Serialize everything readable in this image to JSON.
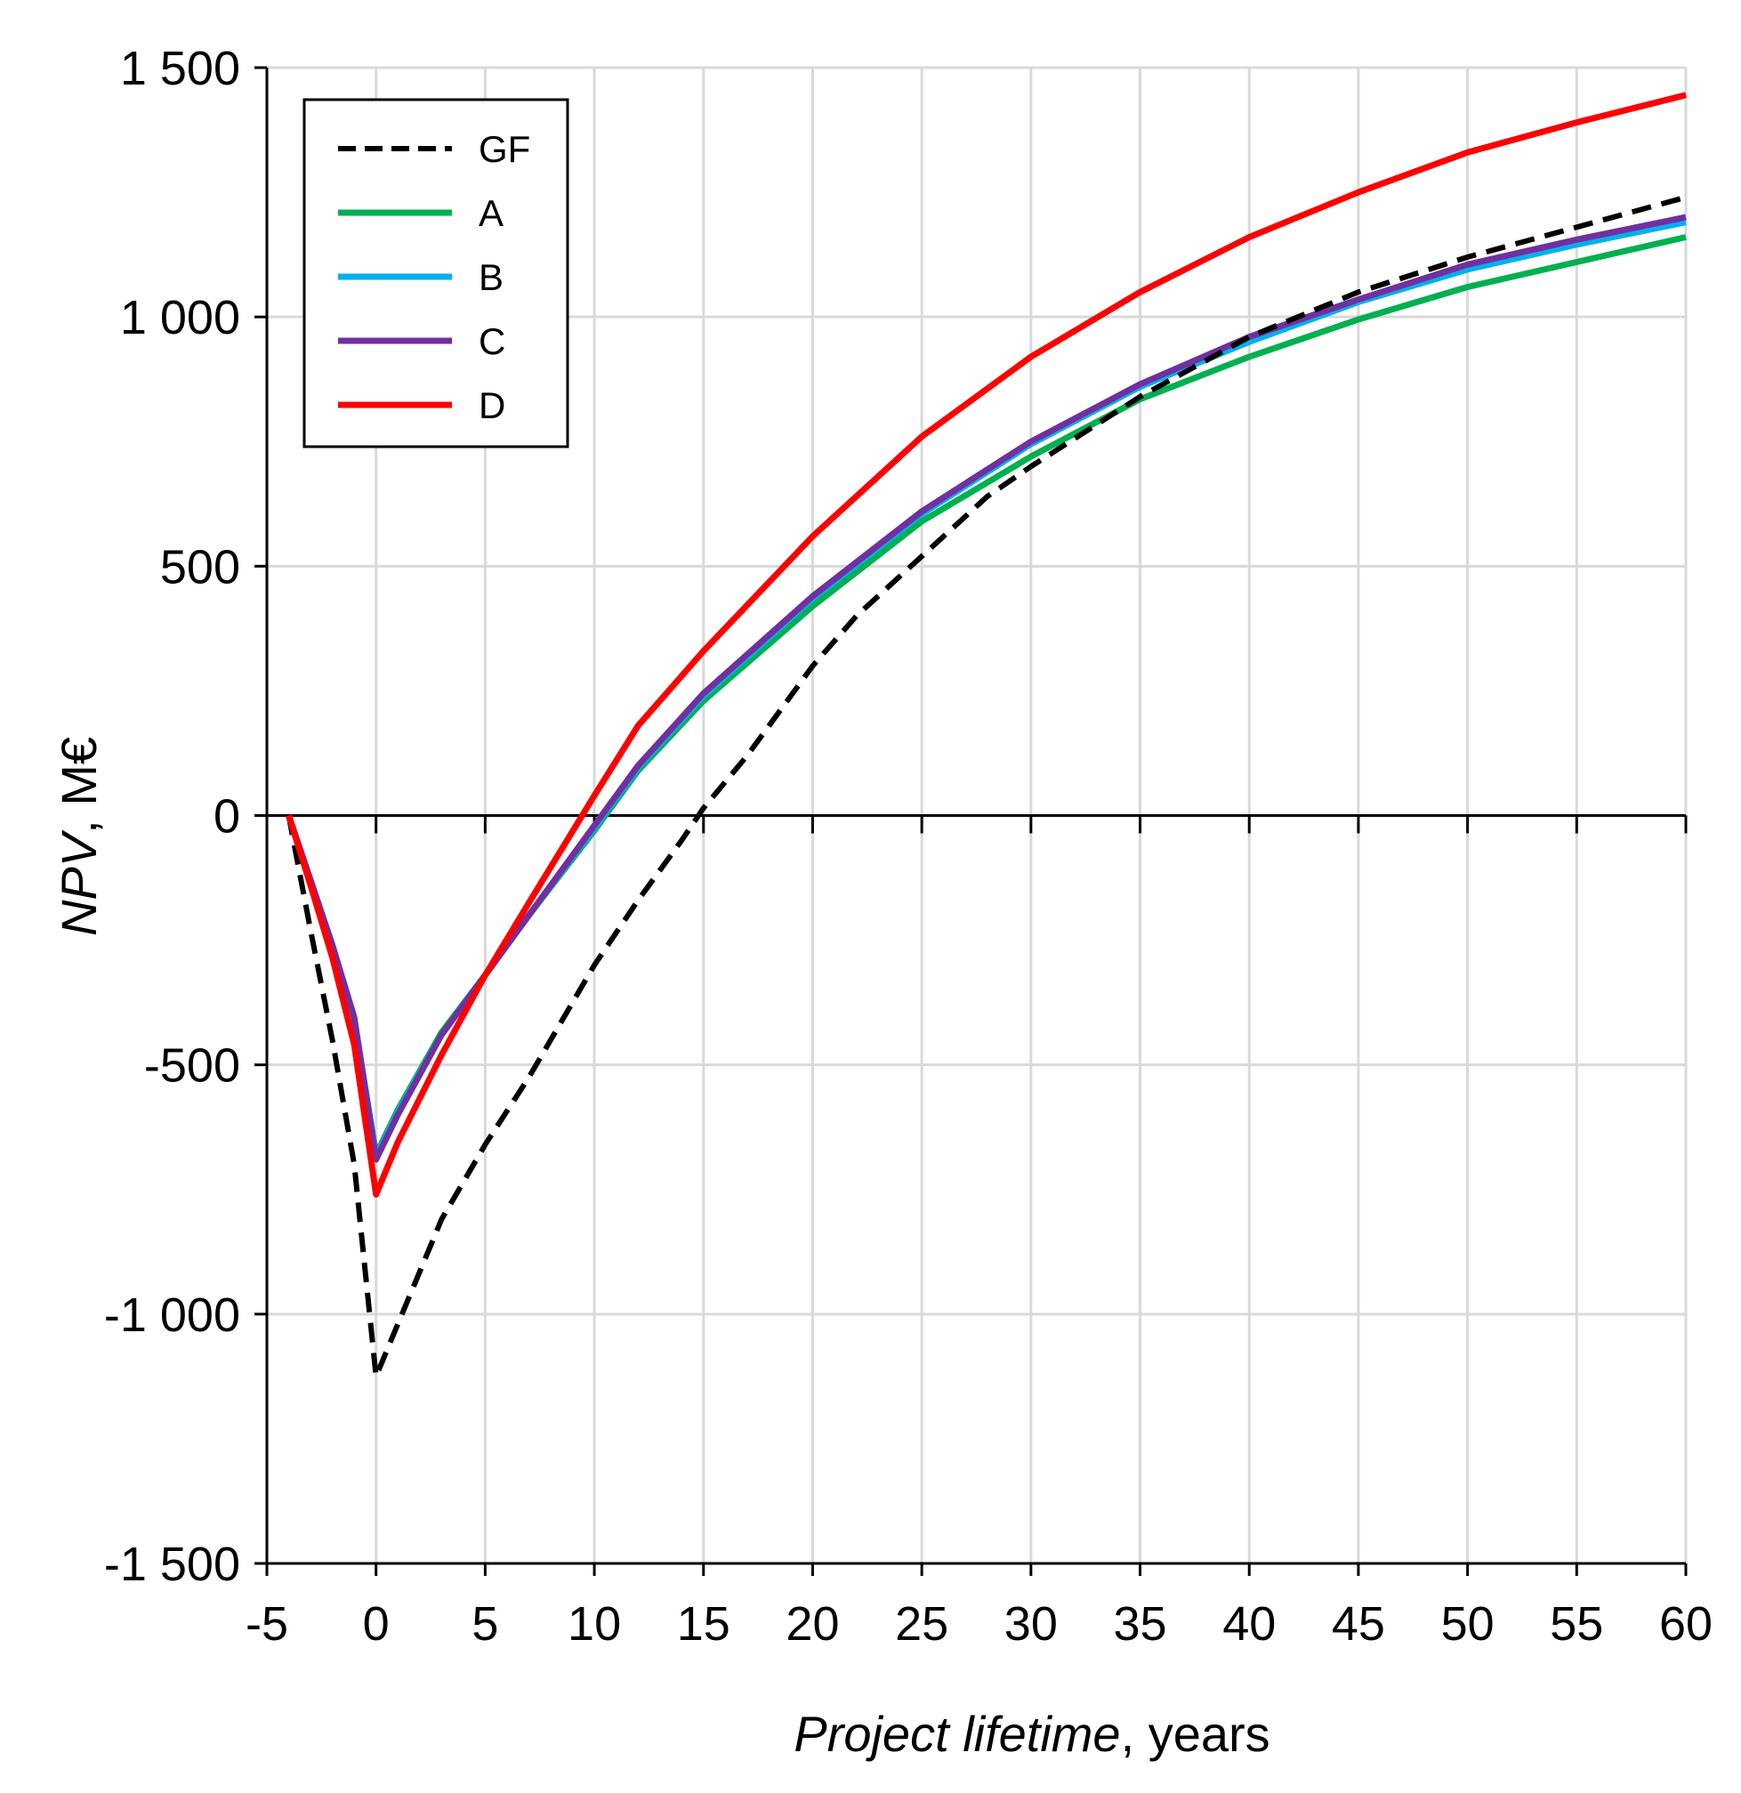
{
  "chart_data": {
    "type": "line",
    "title": "",
    "xlabel_italic": "Project lifetime",
    "xlabel_suffix": ", years",
    "ylabel_italic": "NPV",
    "ylabel_suffix": ", M€",
    "xlim": [
      -5,
      60
    ],
    "ylim": [
      -1500,
      1500
    ],
    "x_ticks": [
      -5,
      0,
      5,
      10,
      15,
      20,
      25,
      30,
      35,
      40,
      45,
      50,
      55,
      60
    ],
    "y_ticks": [
      1500,
      1000,
      500,
      0,
      -500,
      -1000,
      -1500
    ],
    "x_tick_labels": [
      "-5",
      "0",
      "5",
      "10",
      "15",
      "20",
      "25",
      "30",
      "35",
      "40",
      "45",
      "50",
      "55",
      "60"
    ],
    "y_tick_labels": [
      "1 500",
      "1 000",
      "500",
      "0",
      "-500",
      "-1 000",
      "-1 500"
    ],
    "grid": true,
    "legend_position": "top-left",
    "series": [
      {
        "name": "GF",
        "color": "#000000",
        "dash": "dashed",
        "x": [
          -4,
          -3,
          -2,
          -1,
          0,
          1,
          2,
          3,
          5,
          7,
          10,
          12,
          14,
          15,
          17,
          20,
          22,
          25,
          28,
          30,
          35,
          40,
          45,
          50,
          55,
          60
        ],
        "y": [
          0,
          -230,
          -450,
          -700,
          -1125,
          -1020,
          -915,
          -810,
          -660,
          -525,
          -300,
          -170,
          -50,
          15,
          120,
          300,
          400,
          520,
          640,
          700,
          840,
          960,
          1050,
          1120,
          1180,
          1240
        ]
      },
      {
        "name": "A",
        "color": "#00b050",
        "dash": "solid",
        "x": [
          -4,
          -3,
          -2,
          -1,
          0,
          1,
          3,
          5,
          7,
          10,
          12,
          15,
          20,
          25,
          30,
          35,
          40,
          45,
          50,
          55,
          60
        ],
        "y": [
          0,
          -130,
          -260,
          -410,
          -680,
          -590,
          -435,
          -320,
          -200,
          -30,
          90,
          230,
          420,
          590,
          720,
          835,
          920,
          995,
          1060,
          1110,
          1160
        ]
      },
      {
        "name": "B",
        "color": "#00b0f0",
        "dash": "solid",
        "x": [
          -4,
          -3,
          -2,
          -1,
          0,
          1,
          3,
          5,
          7,
          10,
          12,
          15,
          20,
          25,
          30,
          35,
          40,
          45,
          50,
          55,
          60
        ],
        "y": [
          0,
          -130,
          -260,
          -410,
          -685,
          -595,
          -440,
          -320,
          -200,
          -25,
          95,
          240,
          435,
          605,
          745,
          860,
          950,
          1030,
          1095,
          1145,
          1190
        ]
      },
      {
        "name": "C",
        "color": "#7030a0",
        "dash": "solid",
        "x": [
          -4,
          -3,
          -2,
          -1,
          0,
          1,
          3,
          5,
          7,
          10,
          12,
          15,
          20,
          25,
          30,
          35,
          40,
          45,
          50,
          55,
          60
        ],
        "y": [
          0,
          -130,
          -260,
          -405,
          -690,
          -600,
          -440,
          -320,
          -200,
          -20,
          100,
          245,
          440,
          610,
          750,
          865,
          960,
          1035,
          1105,
          1155,
          1200
        ]
      },
      {
        "name": "D",
        "color": "#ff0000",
        "dash": "solid",
        "x": [
          -4,
          -3,
          -2,
          -1,
          0,
          1,
          3,
          5,
          7,
          10,
          12,
          15,
          20,
          25,
          30,
          35,
          40,
          45,
          50,
          55,
          60
        ],
        "y": [
          0,
          -140,
          -285,
          -460,
          -760,
          -655,
          -480,
          -320,
          -175,
          40,
          180,
          330,
          560,
          760,
          920,
          1050,
          1160,
          1250,
          1330,
          1390,
          1445
        ]
      }
    ]
  }
}
